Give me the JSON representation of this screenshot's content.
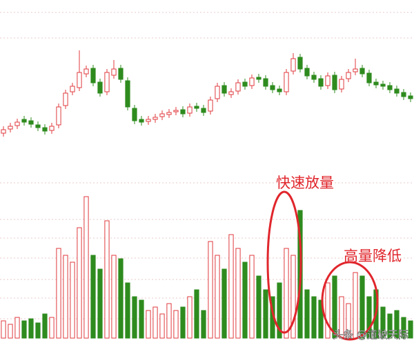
{
  "chart_data": {
    "type": "candlestick",
    "up_color": "#e0393e",
    "down_color": "#2e8b1e",
    "ylim": [
      0,
      240
    ],
    "open": [
      52,
      58,
      63,
      72,
      70,
      64,
      60,
      56,
      64,
      92,
      112,
      118,
      138,
      146,
      126,
      112,
      136,
      146,
      128,
      88,
      72,
      69,
      72,
      76,
      79,
      83,
      86,
      81,
      91,
      88,
      84,
      102,
      121,
      108,
      113,
      126,
      121,
      133,
      131,
      121,
      116,
      112,
      142,
      162,
      146,
      136,
      131,
      121,
      136,
      116,
      131,
      141,
      146,
      139,
      126,
      123,
      121,
      116,
      111,
      106
    ],
    "high": [
      62,
      67,
      73,
      77,
      75,
      69,
      65,
      67,
      95,
      115,
      125,
      172,
      150,
      151,
      131,
      145,
      158,
      151,
      133,
      93,
      77,
      77,
      80,
      85,
      87,
      90,
      91,
      95,
      96,
      93,
      105,
      125,
      126,
      117,
      130,
      131,
      137,
      138,
      136,
      126,
      121,
      145,
      168,
      167,
      151,
      141,
      136,
      140,
      141,
      135,
      145,
      160,
      151,
      144,
      131,
      128,
      126,
      121,
      116,
      111
    ],
    "low": [
      47,
      53,
      58,
      63,
      60,
      55,
      50,
      51,
      59,
      87,
      107,
      113,
      133,
      120,
      105,
      107,
      131,
      125,
      85,
      65,
      63,
      64,
      67,
      71,
      74,
      78,
      75,
      76,
      83,
      77,
      79,
      97,
      105,
      103,
      108,
      115,
      116,
      125,
      115,
      110,
      107,
      107,
      137,
      140,
      130,
      125,
      115,
      116,
      110,
      111,
      126,
      136,
      133,
      120,
      117,
      115,
      110,
      105,
      100,
      97
    ],
    "close": [
      57,
      62,
      68,
      68,
      65,
      60,
      55,
      62,
      90,
      110,
      120,
      140,
      145,
      125,
      110,
      140,
      145,
      130,
      90,
      70,
      68,
      72,
      75,
      80,
      82,
      85,
      80,
      90,
      88,
      82,
      100,
      120,
      110,
      112,
      125,
      120,
      132,
      130,
      120,
      115,
      112,
      140,
      160,
      145,
      135,
      130,
      120,
      135,
      115,
      130,
      140,
      145,
      138,
      125,
      122,
      120,
      115,
      110,
      105,
      102
    ],
    "volume": [
      25,
      20,
      30,
      25,
      28,
      22,
      35,
      30,
      130,
      120,
      110,
      160,
      205,
      120,
      100,
      170,
      120,
      115,
      80,
      60,
      55,
      40,
      45,
      35,
      50,
      40,
      45,
      60,
      70,
      40,
      140,
      120,
      100,
      150,
      130,
      110,
      120,
      90,
      70,
      60,
      80,
      130,
      120,
      185,
      70,
      60,
      55,
      80,
      90,
      60,
      50,
      95,
      90,
      60,
      70,
      45,
      35,
      40,
      30,
      25
    ],
    "volume_ylim": [
      0,
      220
    ],
    "annotations": [
      {
        "text": "快速放量",
        "color": "#e0262c"
      },
      {
        "text": "高量降低",
        "color": "#e0262c"
      }
    ],
    "watermark": "头条 @道破天际"
  }
}
